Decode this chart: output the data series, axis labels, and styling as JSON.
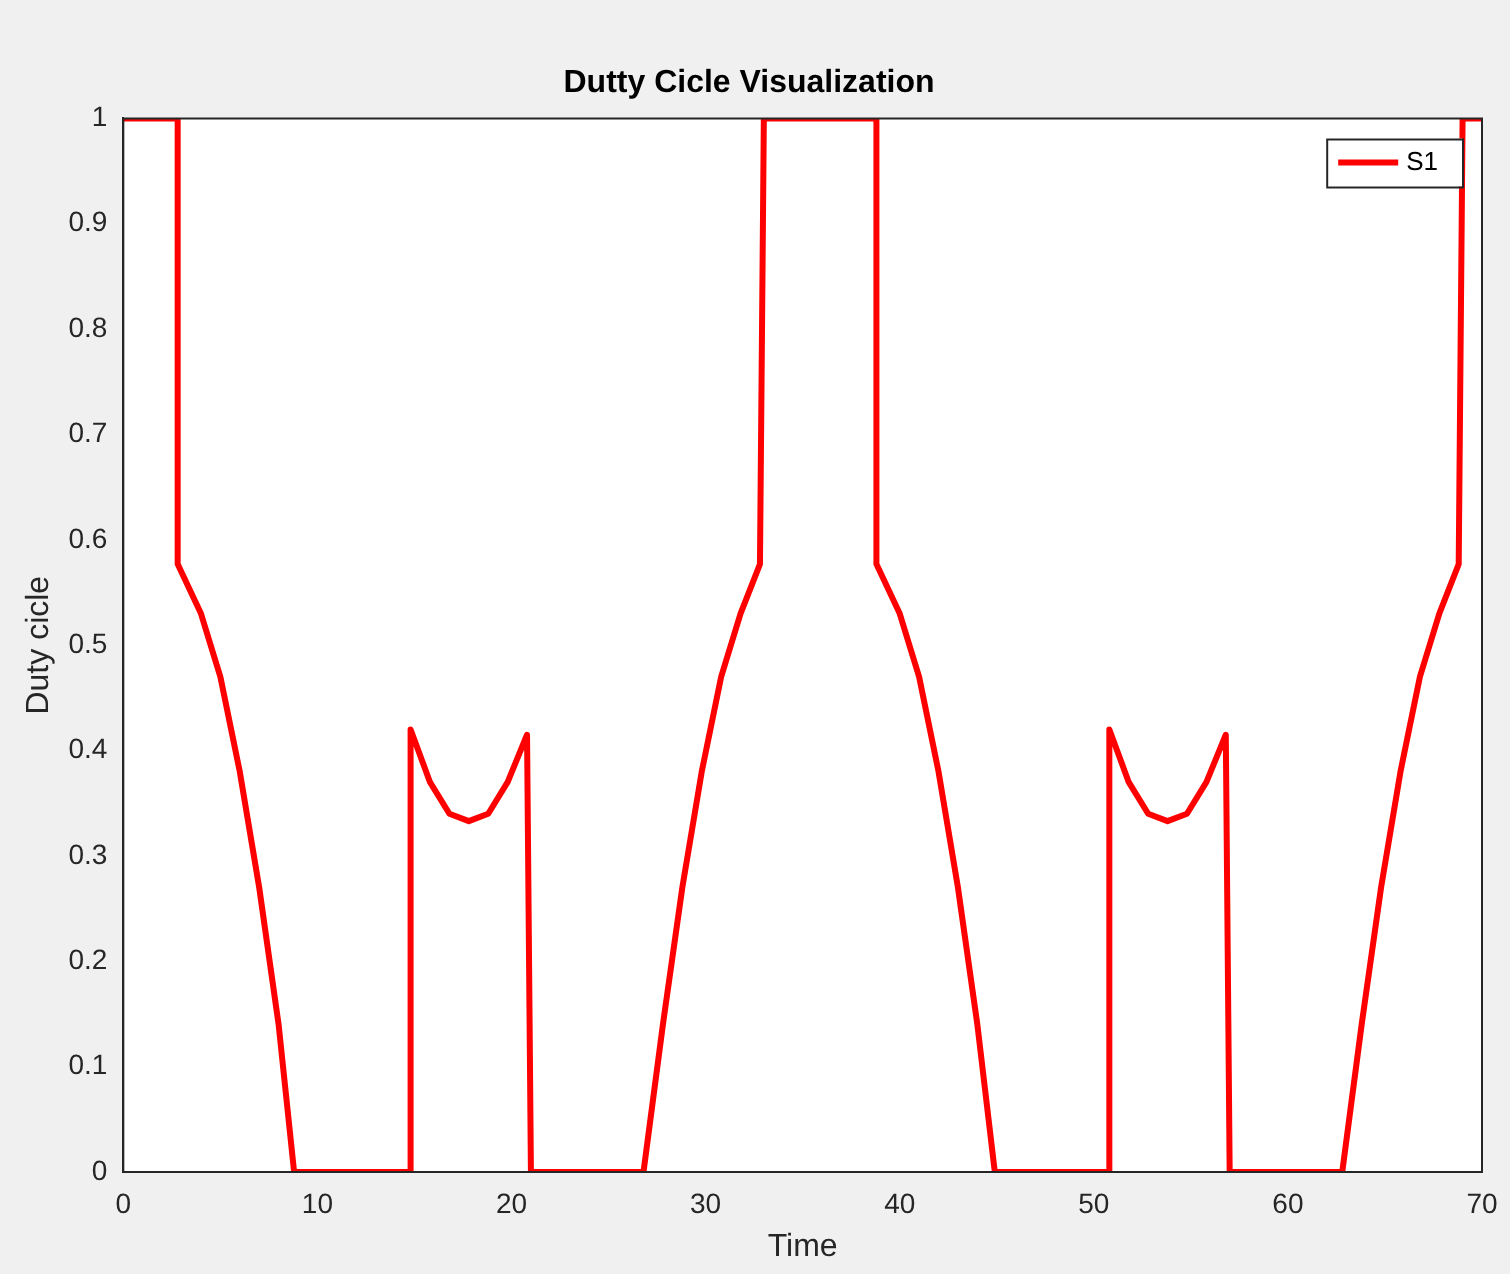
{
  "chart_data": {
    "type": "line",
    "title": "Dutty Cicle Visualization",
    "xlabel": "Time",
    "ylabel": "Duty cicle",
    "series": [
      {
        "name": "S1",
        "color": "#ff0000",
        "x": [
          0,
          2.8,
          2.8,
          4,
          5,
          6,
          7,
          8,
          8.8,
          14.8,
          14.8,
          15.8,
          16.8,
          17.8,
          18.8,
          19.8,
          20.8,
          21,
          26.8,
          27.8,
          28.8,
          29.8,
          30.8,
          31.8,
          32.8,
          33,
          38.8,
          38.8,
          40,
          41,
          42,
          43,
          44,
          44.9,
          50.8,
          50.8,
          51.8,
          52.8,
          53.8,
          54.8,
          55.8,
          56.8,
          57,
          62.8,
          63.8,
          64.8,
          65.8,
          66.8,
          67.8,
          68.8,
          69,
          70
        ],
        "values": [
          1,
          1,
          0.577,
          0.53,
          0.47,
          0.38,
          0.27,
          0.14,
          0,
          0,
          0.42,
          0.37,
          0.34,
          0.333,
          0.34,
          0.37,
          0.415,
          0,
          0,
          0.14,
          0.27,
          0.38,
          0.47,
          0.53,
          0.577,
          1,
          1,
          0.577,
          0.53,
          0.47,
          0.38,
          0.27,
          0.14,
          0,
          0,
          0.42,
          0.37,
          0.34,
          0.333,
          0.34,
          0.37,
          0.415,
          0,
          0,
          0.14,
          0.27,
          0.38,
          0.47,
          0.53,
          0.577,
          1,
          1
        ]
      }
    ],
    "xlim": [
      0,
      70
    ],
    "xticks": [
      0,
      10,
      20,
      30,
      40,
      50,
      60,
      70
    ],
    "ylim": [
      0,
      1
    ],
    "yticks": [
      0,
      0.1,
      0.2,
      0.3,
      0.4,
      0.5,
      0.6,
      0.7,
      0.8,
      0.9,
      1
    ],
    "grid": false,
    "legend": "top right",
    "marker": "none",
    "line_style": "solid"
  }
}
